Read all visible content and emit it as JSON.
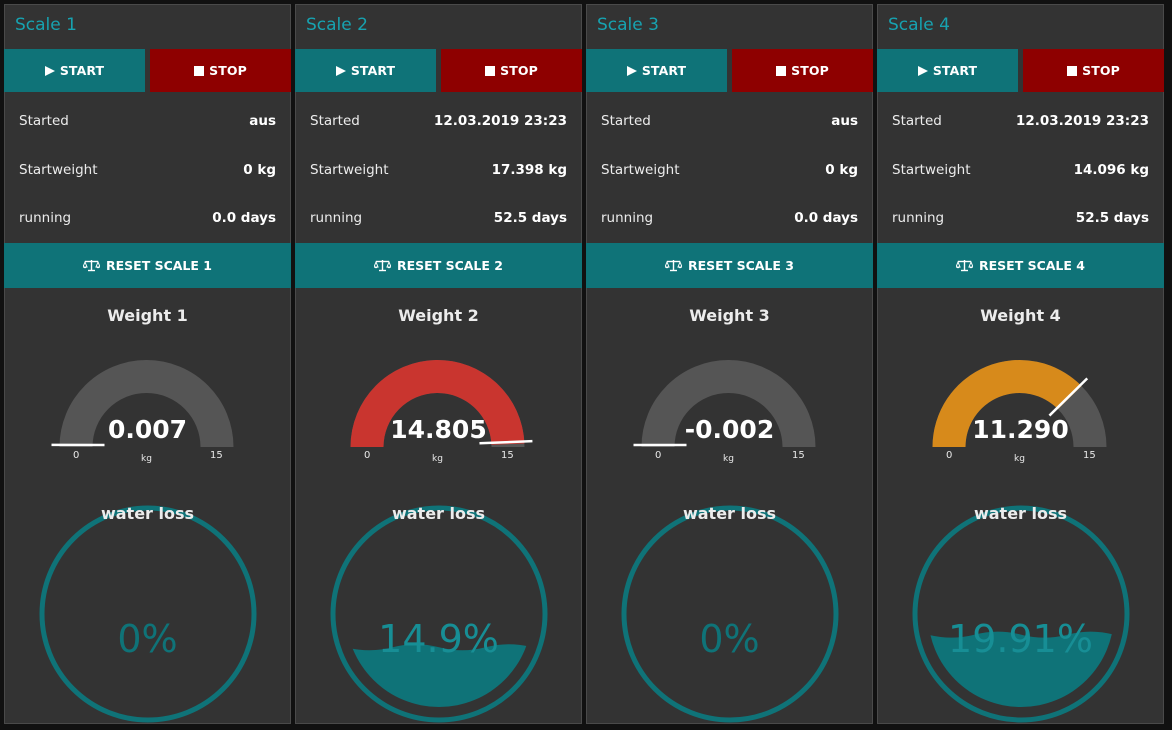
{
  "colors": {
    "accent": "#17a2b0",
    "teal": "#0f7378",
    "stop": "#8e0000",
    "panel": "#333333",
    "gauge_track": "#555555",
    "gauge_red": "#c9352f",
    "gauge_orange": "#d78a1b"
  },
  "scales": [
    {
      "title": "Scale 1",
      "start_label": "START",
      "stop_label": "STOP",
      "started_label": "Started",
      "started_value": "aus",
      "startweight_label": "Startweight",
      "startweight_value": "0 kg",
      "running_label": "running",
      "running_value": "0.0 days",
      "reset_label": "RESET SCALE 1",
      "gauge_title": "Weight 1",
      "gauge_value": "0.007",
      "gauge_min": "0",
      "gauge_max": "15",
      "gauge_unit": "kg",
      "gauge_level": 0.007,
      "gauge_color": "#555555",
      "water_title": "water loss",
      "water_pct": "0%",
      "water_level": 0
    },
    {
      "title": "Scale 2",
      "start_label": "START",
      "stop_label": "STOP",
      "started_label": "Started",
      "started_value": "12.03.2019 23:23",
      "startweight_label": "Startweight",
      "startweight_value": "17.398 kg",
      "running_label": "running",
      "running_value": "52.5 days",
      "reset_label": "RESET SCALE 2",
      "gauge_title": "Weight 2",
      "gauge_value": "14.805",
      "gauge_min": "0",
      "gauge_max": "15",
      "gauge_unit": "kg",
      "gauge_level": 14.805,
      "gauge_color": "#c9352f",
      "water_title": "water loss",
      "water_pct": "14.9%",
      "water_level": 0.149
    },
    {
      "title": "Scale 3",
      "start_label": "START",
      "stop_label": "STOP",
      "started_label": "Started",
      "started_value": "aus",
      "startweight_label": "Startweight",
      "startweight_value": "0 kg",
      "running_label": "running",
      "running_value": "0.0 days",
      "reset_label": "RESET SCALE 3",
      "gauge_title": "Weight 3",
      "gauge_value": "-0.002",
      "gauge_min": "0",
      "gauge_max": "15",
      "gauge_unit": "kg",
      "gauge_level": -0.002,
      "gauge_color": "#555555",
      "water_title": "water loss",
      "water_pct": "0%",
      "water_level": 0
    },
    {
      "title": "Scale 4",
      "start_label": "START",
      "stop_label": "STOP",
      "started_label": "Started",
      "started_value": "12.03.2019 23:23",
      "startweight_label": "Startweight",
      "startweight_value": "14.096 kg",
      "running_label": "running",
      "running_value": "52.5 days",
      "reset_label": "RESET SCALE 4",
      "gauge_title": "Weight 4",
      "gauge_value": "11.290",
      "gauge_min": "0",
      "gauge_max": "15",
      "gauge_unit": "kg",
      "gauge_level": 11.29,
      "gauge_color": "#d78a1b",
      "water_title": "water loss",
      "water_pct": "19.91%",
      "water_level": 0.1991
    }
  ]
}
